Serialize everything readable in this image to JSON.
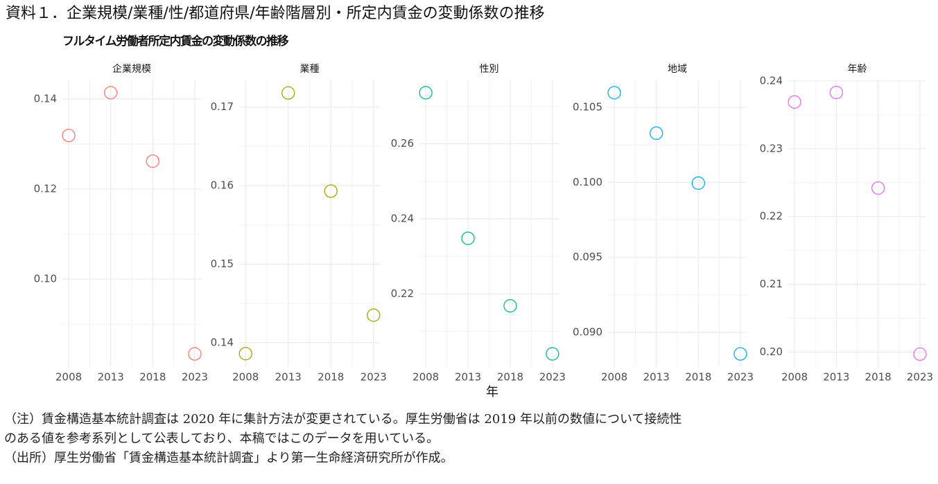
{
  "title": "資料１．企業規模/業種/性/都道府県/年齢階層別・所定内賃金の変動係数の推移",
  "subtitle": "フルタイム労働者所定内賃金の変動係数の推移",
  "x_label": "年",
  "notes": [
    "（注）賃金構造基本統計調査は 2020 年に集計方法が変更されている。厚生労働省は 2019 年以前の数値について接続性",
    "のある値を参考系列として公表しており、本稿ではこのデータを用いている。",
    "（出所）厚生労働省「賃金構造基本統計調査」より第一生命経済研究所が作成。"
  ],
  "chart_data": [
    {
      "type": "scatter",
      "title": "企業規模",
      "x": [
        2008,
        2013,
        2018,
        2023
      ],
      "values": [
        0.1319,
        0.1414,
        0.1262,
        0.0834
      ],
      "color": "#F8766D",
      "xlim": [
        2007.25,
        2023.75
      ],
      "xticks": [
        2008,
        2013,
        2018,
        2023
      ],
      "ylim": [
        0.0805,
        0.1443
      ],
      "yticks": [
        {
          "value": 0.1,
          "label": "0.10"
        },
        0.12,
        0.14
      ],
      "grid": true
    },
    {
      "type": "scatter",
      "title": "業種",
      "x": [
        2008,
        2013,
        2018,
        2023
      ],
      "values": [
        0.1386,
        0.1718,
        0.1593,
        0.1435
      ],
      "color": "#A3A500",
      "xlim": [
        2007.25,
        2023.75
      ],
      "xticks": [
        2008,
        2013,
        2018,
        2023
      ],
      "ylim": [
        0.1369,
        0.1735
      ],
      "yticks": [
        0.14,
        0.15,
        0.16,
        0.17
      ],
      "grid": true
    },
    {
      "type": "scatter",
      "title": "性別",
      "x": [
        2008,
        2013,
        2018,
        2023
      ],
      "values": [
        0.2736,
        0.2348,
        0.2168,
        0.204
      ],
      "color": "#00BF7D",
      "xlim": [
        2007.25,
        2023.75
      ],
      "xticks": [
        2008,
        2013,
        2018,
        2023
      ],
      "ylim": [
        0.2005,
        0.2771
      ],
      "yticks": [
        0.22,
        0.24,
        0.26
      ],
      "grid": true
    },
    {
      "type": "scatter",
      "title": "地域",
      "x": [
        2008,
        2013,
        2018,
        2023
      ],
      "values": [
        0.10598,
        0.10328,
        0.09995,
        0.08856
      ],
      "color": "#00B0F6",
      "xlim": [
        2007.25,
        2023.75
      ],
      "xticks": [
        2008,
        2013,
        2018,
        2023
      ],
      "ylim": [
        0.08769,
        0.10685
      ],
      "yticks": [
        {
          "value": 0.09,
          "label": "0.090"
        },
        0.095,
        {
          "value": 0.1,
          "label": "0.100"
        },
        0.105
      ],
      "grid": true
    },
    {
      "type": "scatter",
      "title": "年齢",
      "x": [
        2008,
        2013,
        2018,
        2023
      ],
      "values": [
        0.2369,
        0.2383,
        0.2242,
        0.1997
      ],
      "color": "#E76BF3",
      "xlim": [
        2007.25,
        2023.75
      ],
      "xticks": [
        2008,
        2013,
        2018,
        2023
      ],
      "ylim": [
        0.1978,
        0.2402
      ],
      "yticks": [
        {
          "value": 0.2,
          "label": "0.20"
        },
        0.21,
        0.22,
        0.23,
        0.24
      ],
      "grid": true
    }
  ]
}
